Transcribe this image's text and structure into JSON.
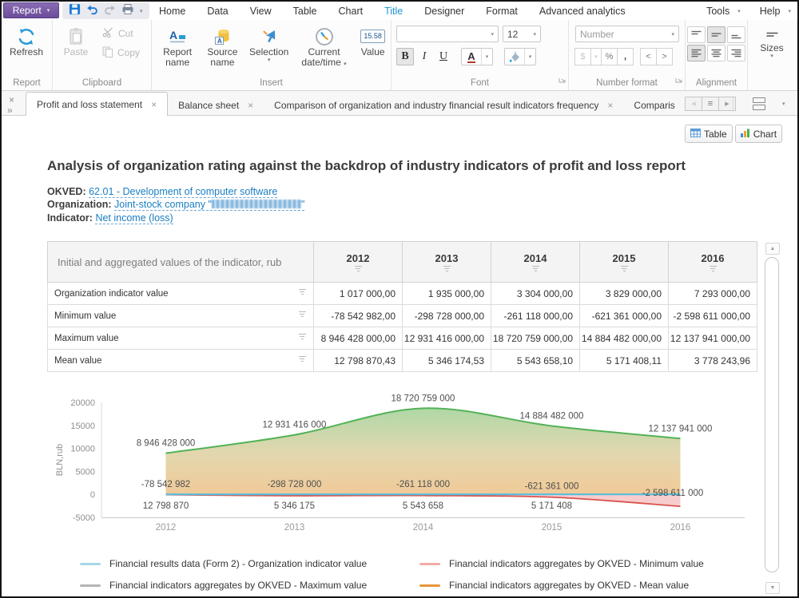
{
  "menubar": {
    "report": "Report",
    "items": [
      "Home",
      "Data",
      "View",
      "Table",
      "Chart",
      "Title",
      "Designer",
      "Format",
      "Advanced analytics"
    ],
    "tools": "Tools",
    "help": "Help"
  },
  "ribbon": {
    "groups": {
      "report": {
        "label": "Report",
        "refresh": "Refresh"
      },
      "clipboard": {
        "label": "Clipboard",
        "paste": "Paste",
        "cut": "Cut",
        "copy": "Copy"
      },
      "insert": {
        "label": "Insert",
        "report_name": "Report name",
        "source_name": "Source name",
        "selection": "Selection",
        "datetime": "Current date/time",
        "value": "Value",
        "value_badge": "15.58"
      },
      "font": {
        "label": "Font",
        "size": "12",
        "bold": "B",
        "italic": "I",
        "underline": "U",
        "color_letter": "A"
      },
      "number": {
        "label": "Number format",
        "format": "Number",
        "currency": "$",
        "percent": "%",
        "comma": ",",
        "left": "<",
        "right": ">"
      },
      "alignment": {
        "label": "Alignment"
      },
      "sizes": {
        "label": "Sizes"
      }
    }
  },
  "tabbar": {
    "tabs": [
      "Profit and loss statement",
      "Balance sheet",
      "Comparison of organization and industry financial result indicators frequency",
      "Comparis"
    ]
  },
  "view_toggle": {
    "table": "Table",
    "chart": "Chart"
  },
  "page": {
    "title": "Analysis of organization rating against the backdrop of industry indicators of profit and loss report",
    "okved_label": "OKVED:",
    "okved_link": "62.01 - Development of computer software",
    "org_label": "Organization:",
    "org_link_prefix": "Joint-stock company \"",
    "org_link_suffix": "\"",
    "indicator_label": "Indicator:",
    "indicator_link": "Net income (loss)"
  },
  "table": {
    "corner": "Initial and aggregated values of the indicator, rub",
    "years": [
      "2012",
      "2013",
      "2014",
      "2015",
      "2016"
    ],
    "rows": [
      {
        "label": "Organization indicator value",
        "values": [
          "1 017 000,00",
          "1 935 000,00",
          "3 304 000,00",
          "3 829 000,00",
          "7 293 000,00"
        ]
      },
      {
        "label": "Minimum value",
        "values": [
          "-78 542 982,00",
          "-298 728 000,00",
          "-261 118 000,00",
          "-621 361 000,00",
          "-2 598 611 000,00"
        ]
      },
      {
        "label": "Maximum value",
        "values": [
          "8 946 428 000,00",
          "12 931 416 000,00",
          "18 720 759 000,00",
          "14 884 482 000,00",
          "12 137 941 000,00"
        ]
      },
      {
        "label": "Mean value",
        "values": [
          "12 798 870,43",
          "5 346 174,53",
          "5 543 658,10",
          "5 171 408,11",
          "3 778 243,96"
        ]
      }
    ]
  },
  "chart_data": {
    "type": "area",
    "categories": [
      "2012",
      "2013",
      "2014",
      "2015",
      "2016"
    ],
    "ylabel": "BLN,rub",
    "ylim": [
      -5000,
      20000
    ],
    "yticks": [
      "20000",
      "15000",
      "10000",
      "5000",
      "0",
      "-5000"
    ],
    "series": [
      {
        "name": "Financial results data (Form 2) - Organization indicator value",
        "color": "#56bfe0",
        "values_rub": [
          1017000,
          1935000,
          3304000,
          3829000,
          7293000
        ],
        "axis_values": [
          1.0,
          1.9,
          3.3,
          3.8,
          7.3
        ],
        "labels": [
          "",
          "",
          "",
          "",
          ""
        ]
      },
      {
        "name": "Financial indicators aggregates by OKVED - Maximum value",
        "color": "#53b257",
        "values_rub": [
          8946428000,
          12931416000,
          18720759000,
          14884482000,
          12137941000
        ],
        "axis_values": [
          8946.4,
          12931.4,
          18720.8,
          14884.5,
          12137.9
        ],
        "labels": [
          "8 946 428 000",
          "12 931 416 000",
          "18 720 759 000",
          "14 884 482 000",
          "12 137 941 000"
        ]
      },
      {
        "name": "Financial indicators aggregates by OKVED - Minimum value",
        "color": "#d9534f",
        "values_rub": [
          -78542982,
          -298728000,
          -261118000,
          -621361000,
          -2598611000
        ],
        "axis_values": [
          -78.5,
          -298.7,
          -261.1,
          -621.4,
          -2598.6
        ],
        "labels": [
          "-78 542 982",
          "-298 728 000",
          "-261 118 000",
          "-621 361 000",
          "-2 598 611 000"
        ]
      },
      {
        "name": "Financial indicators aggregates by OKVED - Mean value",
        "color": "#e8953b",
        "values_rub": [
          12798870.43,
          5346174.53,
          5543658.1,
          5171408.11,
          3778243.96
        ],
        "axis_values": [
          12.8,
          5.3,
          5.5,
          5.2,
          3.8
        ],
        "labels": [
          "12 798 870",
          "5 346 175",
          "5 543 658",
          "5 171 408",
          ""
        ]
      }
    ]
  },
  "legend": {
    "items": [
      {
        "color": "#a5d8e8",
        "label": "Financial results data (Form 2) -  Organization indicator value"
      },
      {
        "color": "#f2aca6",
        "label": "Financial indicators aggregates by OKVED - Minimum value"
      },
      {
        "color": "#b5b5b5",
        "label": "Financial indicators aggregates by OKVED - Maximum value"
      },
      {
        "color": "#e8953b",
        "label": "Financial indicators aggregates by OKVED - Mean value"
      }
    ]
  }
}
